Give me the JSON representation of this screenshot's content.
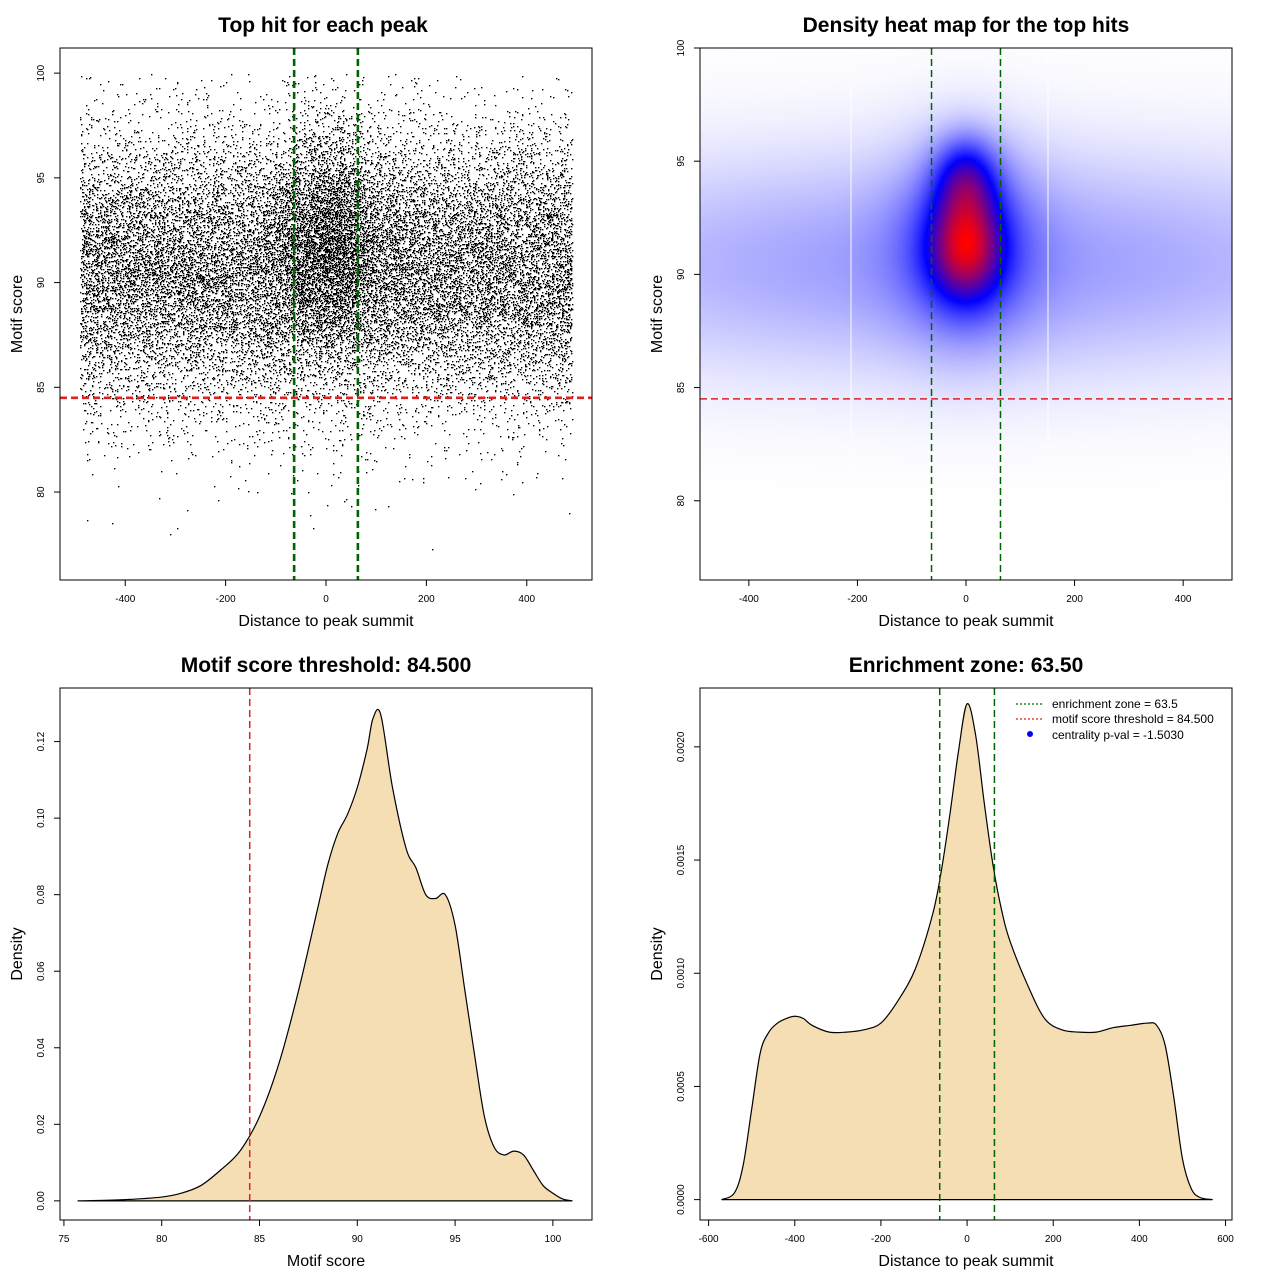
{
  "colors": {
    "background": "#ffffff",
    "axis": "#000000",
    "points": "#000000",
    "green_line": "#006400",
    "red_line": "#dd2222",
    "fill": "#f5deb3",
    "legend_point": "#0000ff"
  },
  "chart_data": [
    {
      "id": "scatter",
      "type": "scatter",
      "title": "Top hit for each peak",
      "xlabel": "Distance to peak summit",
      "ylabel": "Motif score",
      "xlim": [
        -530,
        530
      ],
      "ylim": [
        75.8,
        101.2
      ],
      "xticks": [
        -400,
        -200,
        0,
        200,
        400
      ],
      "xtick_labels": [
        "-400",
        "-200",
        "0",
        "200",
        "400"
      ],
      "yticks": [
        80,
        85,
        90,
        95,
        100
      ],
      "ytick_labels": [
        "80",
        "85",
        "90",
        "95",
        "100"
      ],
      "vlines": [
        -63.5,
        63.5
      ],
      "hlines": [
        84.5
      ],
      "point_count": 26000,
      "distribution": {
        "x_range": [
          -490,
          490
        ],
        "score_mean": 90.6,
        "score_sd": 3.3,
        "central_fraction": 0.14,
        "central_sd": 60,
        "central_score_mean": 92.0
      }
    },
    {
      "id": "heatmap",
      "type": "heatmap",
      "title": "Density heat map for the top hits",
      "xlabel": "Distance to peak summit",
      "ylabel": "Motif score",
      "xlim": [
        -490,
        490
      ],
      "ylim": [
        76.5,
        100.0
      ],
      "xticks": [
        -400,
        -200,
        0,
        200,
        400
      ],
      "xtick_labels": [
        "-400",
        "-200",
        "0",
        "200",
        "400"
      ],
      "yticks": [
        80,
        85,
        90,
        95,
        100
      ],
      "ytick_labels": [
        "80",
        "85",
        "90",
        "95",
        "100"
      ],
      "vlines": [
        -63.5,
        63.5
      ],
      "hlines": [
        84.5
      ],
      "color_scale": [
        "#ffffff",
        "#0000ff",
        "#ff0000"
      ],
      "density_components": [
        {
          "x": 0,
          "y": 91.2,
          "sx": 45,
          "sy": 1.6,
          "w": 1.0
        },
        {
          "x": 0,
          "y": 94.3,
          "sx": 40,
          "sy": 1.3,
          "w": 0.75
        },
        {
          "x": 0,
          "y": 91.5,
          "sx": 85,
          "sy": 3.0,
          "w": 0.65
        },
        {
          "x": 0,
          "y": 90.5,
          "sx": 650,
          "sy": 3.6,
          "w": 0.55
        }
      ]
    },
    {
      "id": "score-density",
      "type": "area",
      "title": "Motif score threshold: 84.500",
      "xlabel": "Motif score",
      "ylabel": "Density",
      "xlim": [
        74.8,
        102.0
      ],
      "ylim": [
        -0.005,
        0.134
      ],
      "xticks": [
        75,
        80,
        85,
        90,
        95,
        100
      ],
      "xtick_labels": [
        "75",
        "80",
        "85",
        "90",
        "95",
        "100"
      ],
      "yticks": [
        0,
        0.02,
        0.04,
        0.06,
        0.08,
        0.1,
        0.12
      ],
      "ytick_labels": [
        "0.00",
        "0.02",
        "0.04",
        "0.06",
        "0.08",
        "0.10",
        "0.12"
      ],
      "vlines": [
        84.5
      ],
      "x": [
        75.7,
        78.0,
        80.0,
        81.0,
        82.0,
        83.0,
        84.0,
        85.0,
        86.0,
        87.0,
        88.0,
        88.5,
        89.0,
        89.5,
        90.0,
        90.5,
        90.8,
        91.2,
        91.8,
        92.5,
        93.0,
        93.5,
        94.0,
        94.5,
        95.0,
        95.5,
        96.0,
        96.5,
        97.0,
        97.5,
        98.0,
        98.5,
        99.0,
        99.5,
        100.0,
        100.5,
        101.0
      ],
      "y": [
        0.0,
        0.0003,
        0.001,
        0.002,
        0.004,
        0.008,
        0.013,
        0.022,
        0.036,
        0.055,
        0.077,
        0.088,
        0.096,
        0.101,
        0.108,
        0.118,
        0.126,
        0.127,
        0.108,
        0.092,
        0.087,
        0.08,
        0.079,
        0.08,
        0.072,
        0.055,
        0.038,
        0.022,
        0.014,
        0.012,
        0.013,
        0.012,
        0.008,
        0.004,
        0.002,
        0.0005,
        0.0
      ]
    },
    {
      "id": "distance-density",
      "type": "area",
      "title": "Enrichment zone: 63.50",
      "xlabel": "Distance to peak summit",
      "ylabel": "Density",
      "xlim": [
        -620,
        615
      ],
      "ylim": [
        -9e-05,
        0.00226
      ],
      "xticks": [
        -600,
        -400,
        -200,
        0,
        200,
        400,
        600
      ],
      "xtick_labels": [
        "-600",
        "-400",
        "-200",
        "0",
        "200",
        "400",
        "600"
      ],
      "yticks": [
        0,
        0.0005,
        0.001,
        0.0015,
        0.002
      ],
      "ytick_labels": [
        "0.0000",
        "0.0005",
        "0.0010",
        "0.0015",
        "0.0020"
      ],
      "vlines": [
        -63.5,
        63.5
      ],
      "x": [
        -570,
        -540,
        -520,
        -500,
        -480,
        -460,
        -440,
        -420,
        -400,
        -380,
        -360,
        -320,
        -280,
        -240,
        -200,
        -160,
        -120,
        -80,
        -60,
        -40,
        -20,
        0,
        20,
        40,
        60,
        80,
        100,
        140,
        180,
        220,
        260,
        300,
        340,
        380,
        420,
        440,
        460,
        480,
        500,
        520,
        540,
        570
      ],
      "y": [
        0.0,
        3e-05,
        0.00015,
        0.0004,
        0.00065,
        0.00074,
        0.00078,
        0.0008,
        0.00081,
        0.0008,
        0.00077,
        0.00074,
        0.00074,
        0.00075,
        0.00078,
        0.00088,
        0.00102,
        0.00126,
        0.00145,
        0.0017,
        0.00198,
        0.00219,
        0.00205,
        0.00175,
        0.00148,
        0.00128,
        0.00114,
        0.00095,
        0.0008,
        0.00075,
        0.00074,
        0.00074,
        0.00076,
        0.00077,
        0.00078,
        0.00077,
        0.00068,
        0.00045,
        0.00018,
        5e-05,
        1e-05,
        0.0
      ],
      "legend": [
        {
          "label": "enrichment zone = 63.5",
          "style": "dotted",
          "color": "#006400"
        },
        {
          "label": "motif score threshold = 84.500",
          "style": "dotted",
          "color": "#dd2222"
        },
        {
          "label": "centrality p-val = -1.5030",
          "style": "point",
          "color": "#0000ff"
        }
      ],
      "legend_position": "top-right"
    }
  ]
}
